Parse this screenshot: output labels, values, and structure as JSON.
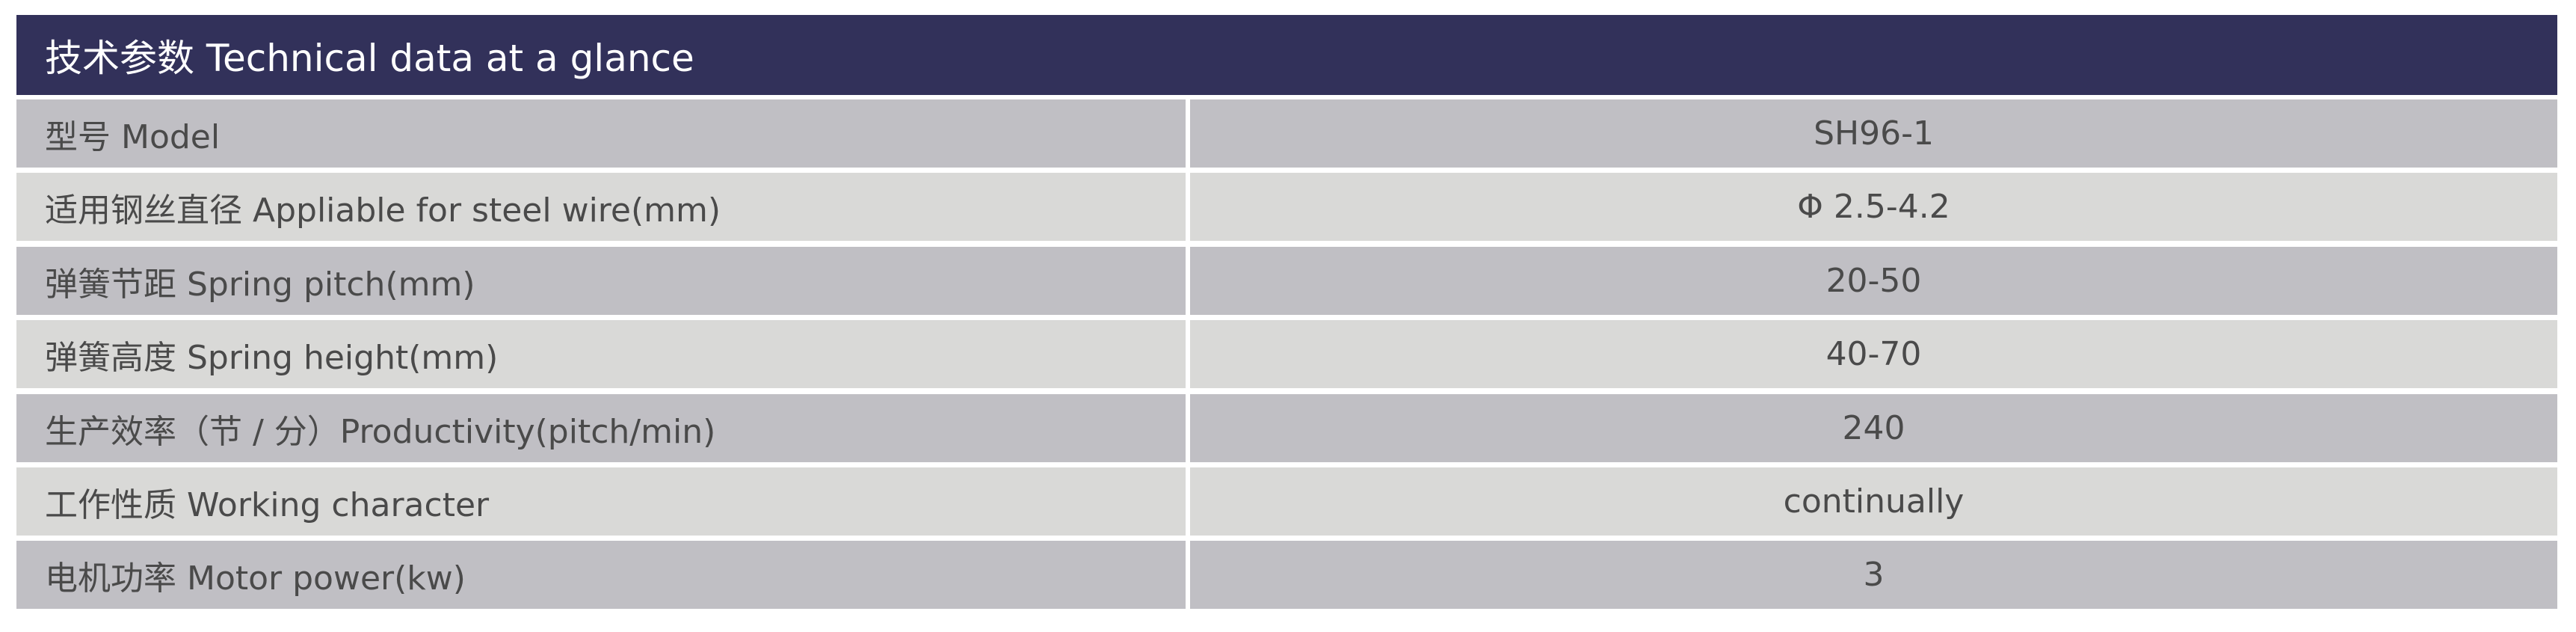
{
  "title": "技术参数 Technical data at a glance",
  "rows": [
    {
      "label": "型号 Model",
      "value": "SH96-1"
    },
    {
      "label": "适用钢丝直径 Appliable for steel wire(mm)",
      "value": "Φ 2.5-4.2"
    },
    {
      "label": "弹簧节距 Spring pitch(mm)",
      "value": "20-50"
    },
    {
      "label": "弹簧高度 Spring height(mm)",
      "value": "40-70"
    },
    {
      "label": "生产效率（节 / 分）Productivity(pitch/min)",
      "value": "240"
    },
    {
      "label": "工作性质 Working character",
      "value": "continually"
    },
    {
      "label": "电机功率 Motor power(kw)",
      "value": "3"
    }
  ],
  "colors": {
    "header": "#32315a",
    "row_dark": "#c0bfc4",
    "row_light": "#d9d9d7",
    "text": "#4a4a4a"
  }
}
